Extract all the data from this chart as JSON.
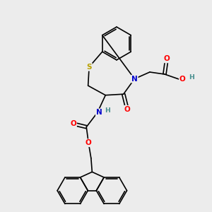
{
  "bg": "#ececec",
  "atom_colors": {
    "S": "#b8a000",
    "N": "#0000cc",
    "O": "#ff0000",
    "H_teal": "#4a9090",
    "C": "#000000"
  },
  "bw": 1.2,
  "fs": 7.5
}
